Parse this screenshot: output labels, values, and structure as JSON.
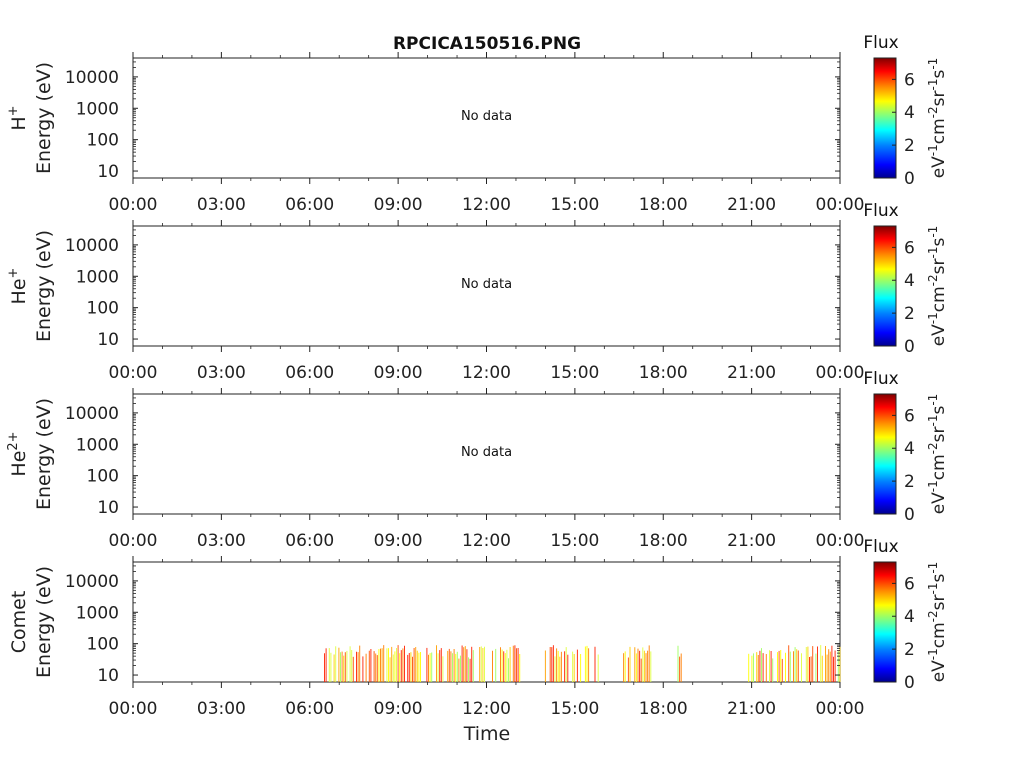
{
  "figure": {
    "title": "RPCICA150516.PNG",
    "xlabel": "Time"
  },
  "panels": [
    {
      "label": "H+",
      "ylabel": "Energy (eV)",
      "status": "No data"
    },
    {
      "label": "He+",
      "ylabel": "Energy (eV)",
      "status": "No data"
    },
    {
      "label": "He2+",
      "ylabel": "Energy (eV)",
      "status": "No data"
    },
    {
      "label": "Comet",
      "ylabel": "Energy (eV)",
      "status": ""
    }
  ],
  "colorbar": {
    "title": "Flux",
    "unit": "eV-1cm-2sr-1s-1",
    "ticks": [
      "0",
      "2",
      "4",
      "6"
    ],
    "range": [
      0,
      7.3
    ]
  },
  "colors": {
    "cmap": [
      "#00008f",
      "#0000ff",
      "#0080ff",
      "#00ffff",
      "#80ff80",
      "#ffff00",
      "#ff8000",
      "#ff0000",
      "#800000"
    ]
  },
  "chart_data": {
    "type": "heatmap",
    "title": "RPCICA150516.PNG",
    "xlabel": "Time",
    "ylabel": "Energy (eV)",
    "x_ticks": [
      "00:00",
      "03:00",
      "06:00",
      "09:00",
      "12:00",
      "15:00",
      "18:00",
      "21:00",
      "00:00"
    ],
    "xlim_hours": [
      0,
      24
    ],
    "y_scale": "log",
    "y_ticks": [
      "10",
      "100",
      "1000",
      "10000"
    ],
    "ylim": [
      6,
      40000
    ],
    "color_range": [
      0,
      7.3
    ],
    "series": [
      {
        "name": "H+",
        "activity_hours": []
      },
      {
        "name": "He+",
        "activity_hours": []
      },
      {
        "name": "He2+",
        "activity_hours": []
      },
      {
        "name": "Comet",
        "activity_hours": [
          [
            6.5,
            13.2
          ],
          [
            14.0,
            15.8
          ],
          [
            16.6,
            17.6
          ],
          [
            18.5,
            18.7
          ],
          [
            20.9,
            24.0
          ]
        ],
        "energy_range_eV": [
          6,
          90
        ]
      }
    ]
  }
}
